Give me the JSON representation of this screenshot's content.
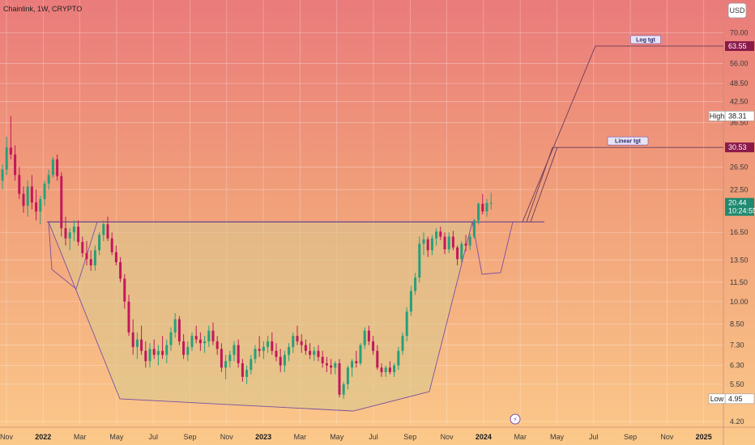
{
  "header": {
    "title": "Chainlink, 1W, CRYPTO",
    "currency": "USD"
  },
  "chart_data": {
    "type": "candlestick",
    "title": "Chainlink, 1W, CRYPTO",
    "yscale": "log",
    "ylim": [
      4.1,
      78
    ],
    "y_ticks": [
      4.2,
      5.5,
      6.3,
      7.3,
      8.5,
      10.0,
      11.5,
      13.5,
      16.5,
      22.5,
      26.5,
      36.5,
      42.5,
      48.5,
      56.0,
      70.0
    ],
    "x_ticks": [
      {
        "label": "Nov",
        "bold": false
      },
      {
        "label": "2022",
        "bold": true
      },
      {
        "label": "Mar",
        "bold": false
      },
      {
        "label": "May",
        "bold": false
      },
      {
        "label": "Jul",
        "bold": false
      },
      {
        "label": "Sep",
        "bold": false
      },
      {
        "label": "Nov",
        "bold": false
      },
      {
        "label": "2023",
        "bold": true
      },
      {
        "label": "Mar",
        "bold": false
      },
      {
        "label": "May",
        "bold": false
      },
      {
        "label": "Jul",
        "bold": false
      },
      {
        "label": "Sep",
        "bold": false
      },
      {
        "label": "Nov",
        "bold": false
      },
      {
        "label": "2024",
        "bold": true
      },
      {
        "label": "Mar",
        "bold": false
      },
      {
        "label": "May",
        "bold": false
      },
      {
        "label": "Jul",
        "bold": false
      },
      {
        "label": "Sep",
        "bold": false
      },
      {
        "label": "Nov",
        "bold": false
      },
      {
        "label": "2025",
        "bold": true
      }
    ],
    "price_tags": [
      {
        "value": 63.55,
        "text": "63.55",
        "color": "#8b1a4a"
      },
      {
        "value": 38.31,
        "text": "38.31",
        "label": "High",
        "color": "#ffffff"
      },
      {
        "value": 30.53,
        "text": "30.53",
        "color": "#8b1a4a"
      },
      {
        "value": 20.44,
        "text": "20.44",
        "color": "#1f8a70"
      },
      {
        "value": 4.95,
        "text": "4.95",
        "label": "Low",
        "color": "#ffffff"
      }
    ],
    "countdown": "10:24:55",
    "annotations": [
      {
        "text": "Log tgt",
        "value": 63.55
      },
      {
        "text": "Linear tgt",
        "value": 30.53
      }
    ],
    "neckline": 17.8,
    "colors": {
      "up": "#26a07a",
      "down": "#c2185b",
      "pattern_line": "#7b4fa0",
      "neckline": "#5a3a8a"
    },
    "candles": [
      [
        24.0,
        27.0,
        22.5,
        26.0
      ],
      [
        26.0,
        33.0,
        25.0,
        30.5
      ],
      [
        30.5,
        38.3,
        28.0,
        29.0
      ],
      [
        29.0,
        31.0,
        24.0,
        25.0
      ],
      [
        25.0,
        26.5,
        21.0,
        21.8
      ],
      [
        21.8,
        23.0,
        19.0,
        20.0
      ],
      [
        20.0,
        24.0,
        18.5,
        23.0
      ],
      [
        23.0,
        25.0,
        19.5,
        20.5
      ],
      [
        20.5,
        22.5,
        18.0,
        19.2
      ],
      [
        19.2,
        21.5,
        17.5,
        21.0
      ],
      [
        21.0,
        24.0,
        20.0,
        23.5
      ],
      [
        23.5,
        26.0,
        22.5,
        25.0
      ],
      [
        25.0,
        28.5,
        24.5,
        28.0
      ],
      [
        28.0,
        29.0,
        24.0,
        24.8
      ],
      [
        24.8,
        25.5,
        16.0,
        17.0
      ],
      [
        17.0,
        18.5,
        15.0,
        15.8
      ],
      [
        15.8,
        17.0,
        14.5,
        16.5
      ],
      [
        16.5,
        18.0,
        15.5,
        17.2
      ],
      [
        17.2,
        18.0,
        15.0,
        15.4
      ],
      [
        15.4,
        16.0,
        13.8,
        14.2
      ],
      [
        14.2,
        15.5,
        13.0,
        13.6
      ],
      [
        13.6,
        14.5,
        12.5,
        13.0
      ],
      [
        13.0,
        15.0,
        12.5,
        14.5
      ],
      [
        14.5,
        16.5,
        14.0,
        16.2
      ],
      [
        16.2,
        18.0,
        15.5,
        17.5
      ],
      [
        17.5,
        18.5,
        15.5,
        15.8
      ],
      [
        15.8,
        16.5,
        14.0,
        14.3
      ],
      [
        14.3,
        15.0,
        13.0,
        13.3
      ],
      [
        13.3,
        13.8,
        11.5,
        11.8
      ],
      [
        11.8,
        12.2,
        9.5,
        10.0
      ],
      [
        10.0,
        10.5,
        7.8,
        8.0
      ],
      [
        8.0,
        8.8,
        6.8,
        7.2
      ],
      [
        7.2,
        8.0,
        6.6,
        7.6
      ],
      [
        7.6,
        8.4,
        6.8,
        7.0
      ],
      [
        7.0,
        7.5,
        6.2,
        6.5
      ],
      [
        6.5,
        7.4,
        6.2,
        7.1
      ],
      [
        7.1,
        7.6,
        6.6,
        6.8
      ],
      [
        6.8,
        7.3,
        6.3,
        7.0
      ],
      [
        7.0,
        7.8,
        6.6,
        6.8
      ],
      [
        6.8,
        7.6,
        6.4,
        7.3
      ],
      [
        7.3,
        8.3,
        7.0,
        8.0
      ],
      [
        8.0,
        9.2,
        7.7,
        8.8
      ],
      [
        8.8,
        9.0,
        7.3,
        7.5
      ],
      [
        7.5,
        7.9,
        6.6,
        6.8
      ],
      [
        6.8,
        7.5,
        6.5,
        7.2
      ],
      [
        7.2,
        8.0,
        7.0,
        7.8
      ],
      [
        7.8,
        8.4,
        7.4,
        7.6
      ],
      [
        7.6,
        8.0,
        7.0,
        7.4
      ],
      [
        7.4,
        7.8,
        6.9,
        7.5
      ],
      [
        7.5,
        8.4,
        7.2,
        8.1
      ],
      [
        8.1,
        8.6,
        7.3,
        7.5
      ],
      [
        7.5,
        7.8,
        6.8,
        7.1
      ],
      [
        7.1,
        7.4,
        6.0,
        6.2
      ],
      [
        6.2,
        6.8,
        5.7,
        6.5
      ],
      [
        6.5,
        7.0,
        6.2,
        6.8
      ],
      [
        6.8,
        7.5,
        6.5,
        7.3
      ],
      [
        7.3,
        7.6,
        6.2,
        6.4
      ],
      [
        6.4,
        6.6,
        5.6,
        5.8
      ],
      [
        5.8,
        6.3,
        5.5,
        6.1
      ],
      [
        6.1,
        6.8,
        5.9,
        6.6
      ],
      [
        6.6,
        7.3,
        6.4,
        7.1
      ],
      [
        7.1,
        7.8,
        6.7,
        7.0
      ],
      [
        7.0,
        7.5,
        6.6,
        7.2
      ],
      [
        7.2,
        7.8,
        6.9,
        7.5
      ],
      [
        7.5,
        8.0,
        6.8,
        7.0
      ],
      [
        7.0,
        7.4,
        6.5,
        6.7
      ],
      [
        6.7,
        7.1,
        6.0,
        6.3
      ],
      [
        6.3,
        7.0,
        6.0,
        6.8
      ],
      [
        6.8,
        7.4,
        6.5,
        7.2
      ],
      [
        7.2,
        8.0,
        6.9,
        7.8
      ],
      [
        7.8,
        8.4,
        7.3,
        7.5
      ],
      [
        7.5,
        7.9,
        6.9,
        7.3
      ],
      [
        7.3,
        7.6,
        6.8,
        7.0
      ],
      [
        7.0,
        7.4,
        6.6,
        6.8
      ],
      [
        6.8,
        7.2,
        6.5,
        7.0
      ],
      [
        7.0,
        7.3,
        6.5,
        6.7
      ],
      [
        6.7,
        7.0,
        6.2,
        6.4
      ],
      [
        6.4,
        6.7,
        6.0,
        6.3
      ],
      [
        6.3,
        6.6,
        5.9,
        6.2
      ],
      [
        6.2,
        6.5,
        5.9,
        6.4
      ],
      [
        6.4,
        6.6,
        5.0,
        5.1
      ],
      [
        5.1,
        5.6,
        4.95,
        5.5
      ],
      [
        5.5,
        6.3,
        5.3,
        6.2
      ],
      [
        6.2,
        6.6,
        5.8,
        6.5
      ],
      [
        6.5,
        7.0,
        6.2,
        6.4
      ],
      [
        6.4,
        7.4,
        6.3,
        7.3
      ],
      [
        7.3,
        8.3,
        7.1,
        8.1
      ],
      [
        8.1,
        8.4,
        7.3,
        7.5
      ],
      [
        7.5,
        7.8,
        6.8,
        7.0
      ],
      [
        7.0,
        7.3,
        6.1,
        6.2
      ],
      [
        6.2,
        6.4,
        5.8,
        6.0
      ],
      [
        6.0,
        6.3,
        5.8,
        6.2
      ],
      [
        6.2,
        6.5,
        5.9,
        6.0
      ],
      [
        6.0,
        6.4,
        5.8,
        6.3
      ],
      [
        6.3,
        7.2,
        6.1,
        7.0
      ],
      [
        7.0,
        8.0,
        6.8,
        7.8
      ],
      [
        7.8,
        9.6,
        7.5,
        9.3
      ],
      [
        9.3,
        11.2,
        9.0,
        10.8
      ],
      [
        10.8,
        12.3,
        10.5,
        11.9
      ],
      [
        11.9,
        16.0,
        11.5,
        15.2
      ],
      [
        15.2,
        16.5,
        14.0,
        15.7
      ],
      [
        15.7,
        16.0,
        13.8,
        14.5
      ],
      [
        14.5,
        16.2,
        14.0,
        15.8
      ],
      [
        15.8,
        17.0,
        15.0,
        16.6
      ],
      [
        16.6,
        17.2,
        15.6,
        16.0
      ],
      [
        16.0,
        16.5,
        14.1,
        14.6
      ],
      [
        14.6,
        16.5,
        14.2,
        16.0
      ],
      [
        16.0,
        16.7,
        14.5,
        14.8
      ],
      [
        14.8,
        15.0,
        13.0,
        13.6
      ],
      [
        13.6,
        15.5,
        13.2,
        15.2
      ],
      [
        15.2,
        16.2,
        14.4,
        15.0
      ],
      [
        15.0,
        16.3,
        14.5,
        16.0
      ],
      [
        16.0,
        18.2,
        15.8,
        18.0
      ],
      [
        18.0,
        20.5,
        17.5,
        20.3
      ],
      [
        20.3,
        21.8,
        18.8,
        19.2
      ],
      [
        19.2,
        21.0,
        18.5,
        20.4
      ],
      [
        20.4,
        22.0,
        19.5,
        20.44
      ]
    ]
  }
}
